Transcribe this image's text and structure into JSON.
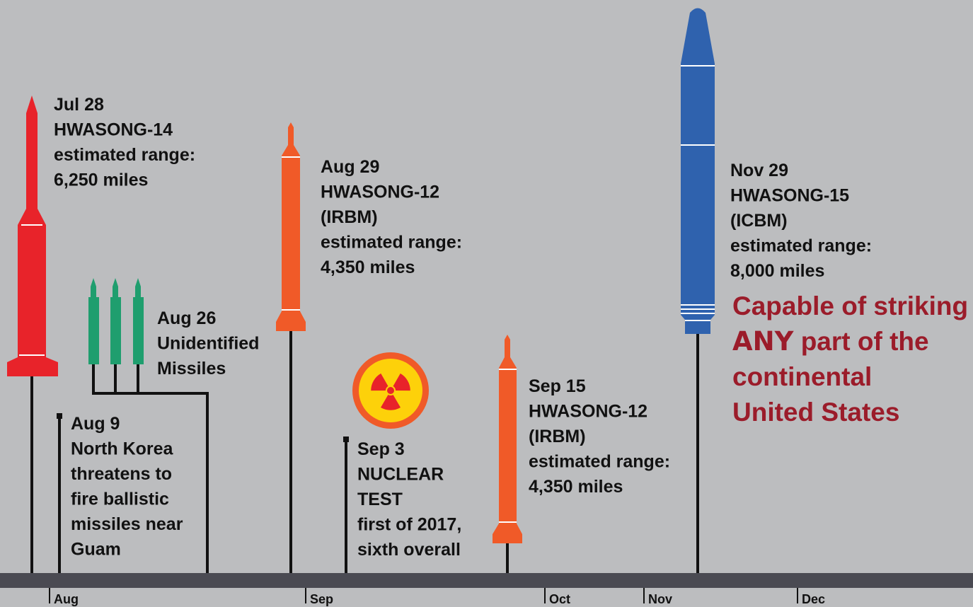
{
  "events": [
    {
      "lines": [
        "Jul 28",
        "HWASONG-14",
        "estimated range:",
        "6,250 miles"
      ]
    },
    {
      "lines": [
        "Aug 9",
        "North Korea",
        "threatens to",
        "fire ballistic",
        "missiles near",
        "Guam"
      ]
    },
    {
      "lines": [
        "Aug 26",
        "Unidentified",
        "Missiles"
      ]
    },
    {
      "lines": [
        "Aug 29",
        "HWASONG-12",
        "(IRBM)",
        "estimated range:",
        "4,350 miles"
      ]
    },
    {
      "lines": [
        "Sep 3",
        "NUCLEAR",
        "TEST",
        "first of 2017,",
        "sixth overall"
      ]
    },
    {
      "lines": [
        "Sep 15",
        "HWASONG-12",
        "(IRBM)",
        "estimated range:",
        "4,350 miles"
      ]
    },
    {
      "lines": [
        "Nov 29",
        "HWASONG-15",
        "(ICBM)",
        "estimated range:",
        "8,000 miles"
      ]
    }
  ],
  "callout": {
    "line1": "Capable of striking",
    "emphasis": "ANY",
    "line2_rest": "part of the",
    "line3": "continental",
    "line4": "United States"
  },
  "months": [
    "Aug",
    "Sep",
    "Oct",
    "Nov",
    "Dec"
  ]
}
